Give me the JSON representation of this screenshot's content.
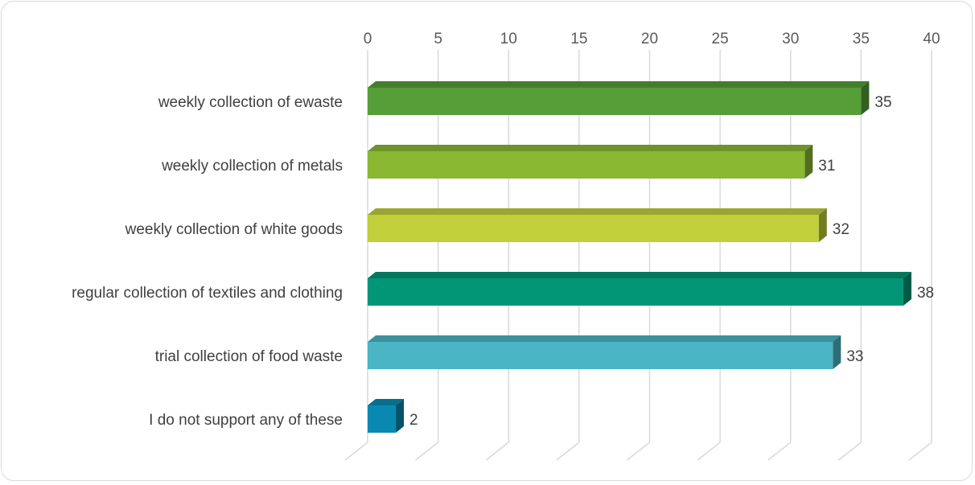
{
  "chart_data": {
    "type": "bar",
    "orientation": "horizontal",
    "style": "3d",
    "categories": [
      "weekly collection of ewaste",
      "weekly collection of metals",
      "weekly collection of white goods",
      "regular collection of textiles and clothing",
      "trial collection of food waste",
      "I do not support any of these"
    ],
    "values": [
      35,
      31,
      32,
      38,
      33,
      2
    ],
    "colors": [
      "#559e38",
      "#8ab833",
      "#c0cf3a",
      "#029676",
      "#4ab5c4",
      "#0989b1"
    ],
    "xlim": [
      0,
      40
    ],
    "xticks": [
      0,
      5,
      10,
      15,
      20,
      25,
      30,
      35,
      40
    ],
    "xaxis_position": "top",
    "grid": true,
    "data_labels": true,
    "legend": "none",
    "title": "",
    "xlabel": "",
    "ylabel": ""
  }
}
